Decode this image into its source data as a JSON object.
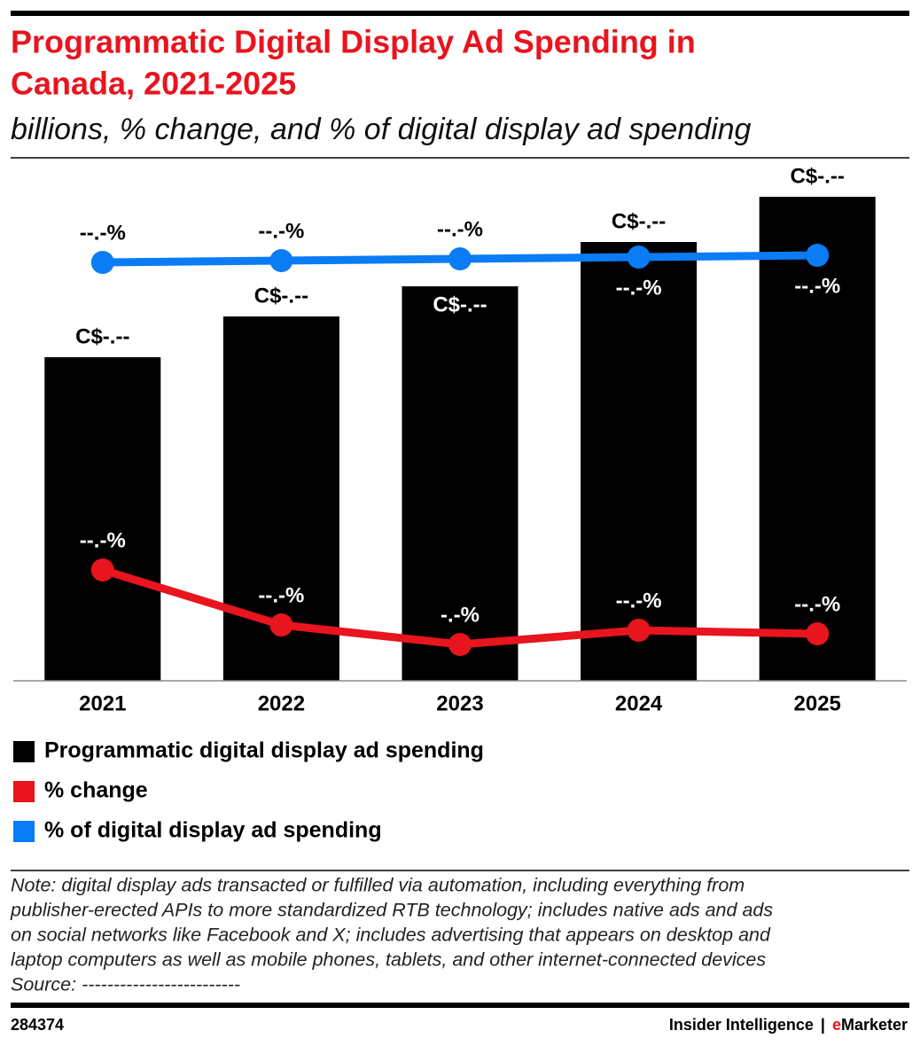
{
  "chart_data": {
    "type": "bar",
    "title": [
      "Programmatic Digital Display Ad Spending in",
      "Canada, 2021-2025"
    ],
    "subtitle": "billions, % change, and % of digital display ad spending",
    "categories": [
      "2021",
      "2022",
      "2023",
      "2024",
      "2025"
    ],
    "series": [
      {
        "name": "Programmatic digital display ad spending",
        "type": "bar",
        "color": "#000000",
        "values": [
          3.65,
          4.11,
          4.45,
          4.95,
          5.46
        ],
        "value_labels": [
          "C$-.--",
          "C$-.--",
          "C$-.--",
          "C$-.--",
          "C$-.--"
        ]
      },
      {
        "name": "% change",
        "type": "line",
        "color": "#e8141e",
        "values": [
          25,
          12.6,
          8.2,
          11.4,
          10.6
        ],
        "value_labels": [
          "--.-%",
          "--.-%",
          "-.-%",
          "--.-%",
          "--.-%"
        ]
      },
      {
        "name": "% of digital display ad spending",
        "type": "line",
        "color": "#0a7cf5",
        "values": [
          94.4,
          94.8,
          95.2,
          95.6,
          96.0
        ],
        "value_labels": [
          "--.-%",
          "--.-%",
          "--.-%",
          "--.-%",
          "--.-%"
        ]
      }
    ],
    "note": [
      "Note: digital display ads transacted or fulfilled via automation, including everything from",
      "publisher-erected APIs to more standardized RTB technology; includes native ads and ads",
      "on social networks like Facebook and X; includes advertising that appears on desktop and",
      "laptop computers as well as mobile phones, tablets, and other internet-connected devices",
      "Source: -------------------------"
    ],
    "footer": {
      "id": "284374",
      "brand": "Insider Intelligence",
      "sep": "|",
      "e": "e",
      "marketer": "Marketer"
    }
  }
}
